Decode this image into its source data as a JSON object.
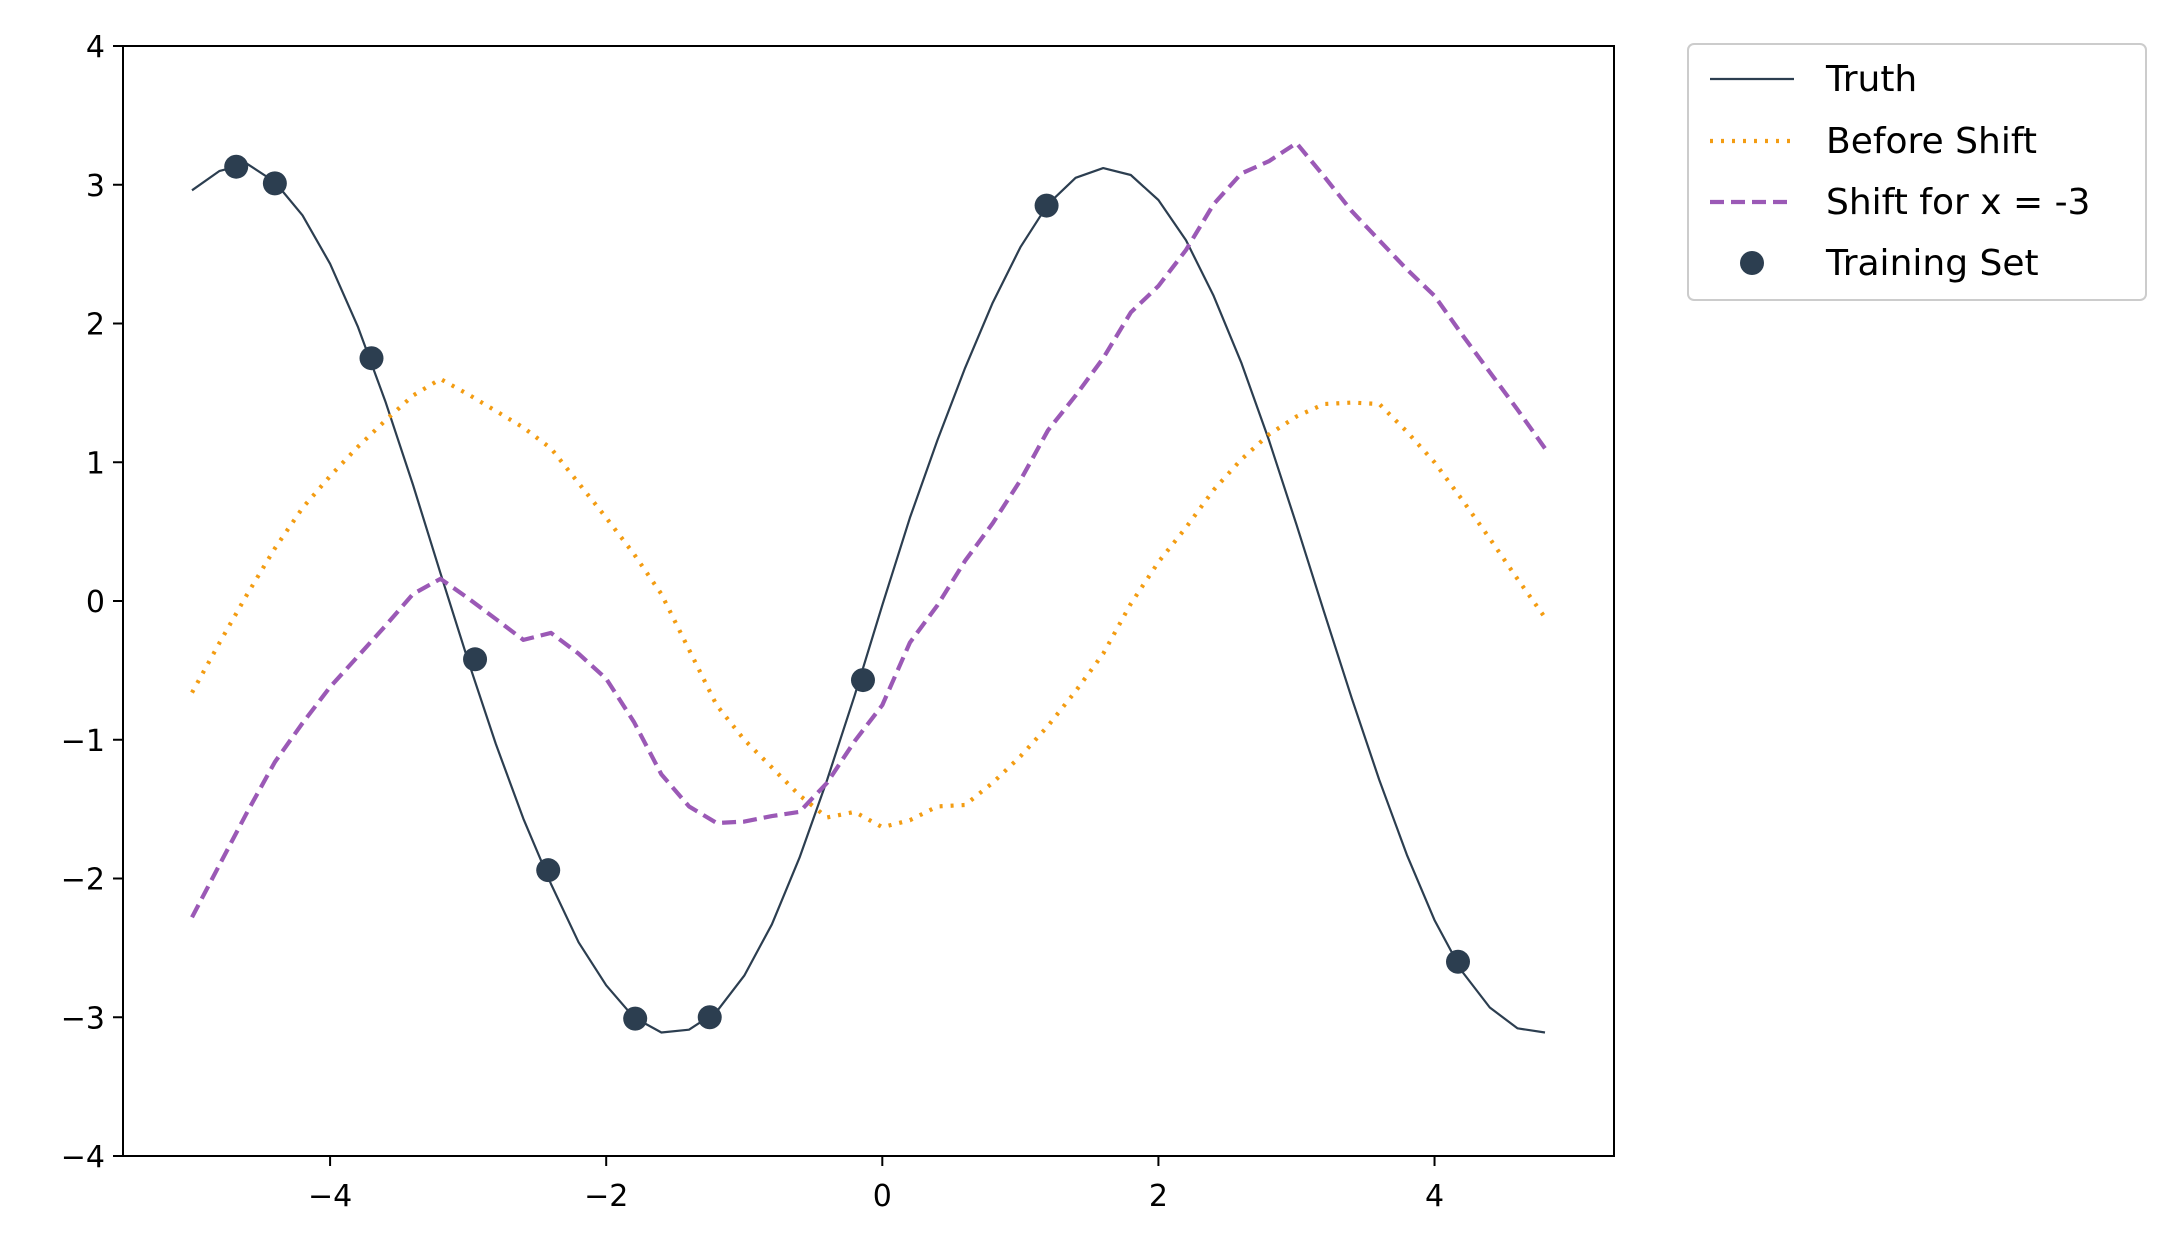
{
  "chart_data": {
    "type": "line",
    "title": "",
    "xlabel": "",
    "ylabel": "",
    "xlim": [
      -5.5,
      5.3
    ],
    "ylim": [
      -4,
      4
    ],
    "xticks": [
      -4,
      -2,
      0,
      2,
      4
    ],
    "xtick_labels": [
      "−4",
      "−2",
      "0",
      "2",
      "4"
    ],
    "yticks": [
      -4,
      -3,
      -2,
      -1,
      0,
      1,
      2,
      3,
      4
    ],
    "ytick_labels": [
      "−4",
      "−3",
      "−2",
      "−1",
      "0",
      "1",
      "2",
      "3",
      "4"
    ],
    "grid": false,
    "legend_position": "outside-top-right",
    "series": [
      {
        "name": "Truth",
        "style": "solid",
        "color": "#2c3e50",
        "points": [
          [
            -5.0,
            2.96
          ],
          [
            -4.8,
            3.1
          ],
          [
            -4.6,
            3.15
          ],
          [
            -4.4,
            3.02
          ],
          [
            -4.2,
            2.78
          ],
          [
            -4.0,
            2.43
          ],
          [
            -3.8,
            1.98
          ],
          [
            -3.6,
            1.44
          ],
          [
            -3.4,
            0.84
          ],
          [
            -3.2,
            0.2
          ],
          [
            -3.0,
            -0.43
          ],
          [
            -2.8,
            -1.03
          ],
          [
            -2.6,
            -1.57
          ],
          [
            -2.4,
            -2.04
          ],
          [
            -2.2,
            -2.46
          ],
          [
            -2.0,
            -2.77
          ],
          [
            -1.8,
            -3.0
          ],
          [
            -1.6,
            -3.11
          ],
          [
            -1.4,
            -3.09
          ],
          [
            -1.2,
            -2.96
          ],
          [
            -1.0,
            -2.7
          ],
          [
            -0.8,
            -2.33
          ],
          [
            -0.6,
            -1.85
          ],
          [
            -0.4,
            -1.29
          ],
          [
            -0.2,
            -0.68
          ],
          [
            0.0,
            -0.03
          ],
          [
            0.2,
            0.6
          ],
          [
            0.4,
            1.16
          ],
          [
            0.6,
            1.68
          ],
          [
            0.8,
            2.15
          ],
          [
            1.0,
            2.55
          ],
          [
            1.2,
            2.86
          ],
          [
            1.4,
            3.05
          ],
          [
            1.6,
            3.12
          ],
          [
            1.8,
            3.07
          ],
          [
            2.0,
            2.89
          ],
          [
            2.2,
            2.6
          ],
          [
            2.4,
            2.2
          ],
          [
            2.6,
            1.72
          ],
          [
            2.8,
            1.16
          ],
          [
            3.0,
            0.55
          ],
          [
            3.2,
            -0.08
          ],
          [
            3.4,
            -0.7
          ],
          [
            3.6,
            -1.29
          ],
          [
            3.8,
            -1.83
          ],
          [
            4.0,
            -2.3
          ],
          [
            4.2,
            -2.67
          ],
          [
            4.4,
            -2.93
          ],
          [
            4.6,
            -3.08
          ],
          [
            4.8,
            -3.11
          ]
        ]
      },
      {
        "name": "Before Shift",
        "style": "dotted",
        "color": "#f39c12",
        "points": [
          [
            -5.0,
            -0.66
          ],
          [
            -4.8,
            -0.3
          ],
          [
            -4.6,
            0.05
          ],
          [
            -4.4,
            0.38
          ],
          [
            -4.2,
            0.67
          ],
          [
            -4.0,
            0.9
          ],
          [
            -3.8,
            1.11
          ],
          [
            -3.6,
            1.3
          ],
          [
            -3.4,
            1.48
          ],
          [
            -3.2,
            1.6
          ],
          [
            -3.0,
            1.49
          ],
          [
            -2.8,
            1.37
          ],
          [
            -2.6,
            1.25
          ],
          [
            -2.4,
            1.1
          ],
          [
            -2.2,
            0.85
          ],
          [
            -2.0,
            0.6
          ],
          [
            -1.8,
            0.34
          ],
          [
            -1.6,
            0.05
          ],
          [
            -1.4,
            -0.35
          ],
          [
            -1.2,
            -0.75
          ],
          [
            -1.0,
            -1.0
          ],
          [
            -0.8,
            -1.2
          ],
          [
            -0.6,
            -1.4
          ],
          [
            -0.4,
            -1.56
          ],
          [
            -0.2,
            -1.52
          ],
          [
            0.0,
            -1.63
          ],
          [
            0.2,
            -1.58
          ],
          [
            0.4,
            -1.48
          ],
          [
            0.6,
            -1.47
          ],
          [
            0.8,
            -1.31
          ],
          [
            1.0,
            -1.12
          ],
          [
            1.2,
            -0.9
          ],
          [
            1.4,
            -0.65
          ],
          [
            1.6,
            -0.38
          ],
          [
            1.8,
            -0.02
          ],
          [
            2.0,
            0.28
          ],
          [
            2.2,
            0.53
          ],
          [
            2.4,
            0.8
          ],
          [
            2.6,
            1.02
          ],
          [
            2.8,
            1.2
          ],
          [
            3.0,
            1.33
          ],
          [
            3.2,
            1.42
          ],
          [
            3.4,
            1.43
          ],
          [
            3.6,
            1.42
          ],
          [
            3.8,
            1.22
          ],
          [
            4.0,
            1.0
          ],
          [
            4.2,
            0.73
          ],
          [
            4.4,
            0.45
          ],
          [
            4.6,
            0.16
          ],
          [
            4.8,
            -0.12
          ]
        ]
      },
      {
        "name": "Shift for x = -3",
        "style": "dashed",
        "color": "#9b59b6",
        "points": [
          [
            -5.0,
            -2.28
          ],
          [
            -4.8,
            -1.9
          ],
          [
            -4.6,
            -1.52
          ],
          [
            -4.4,
            -1.16
          ],
          [
            -4.2,
            -0.88
          ],
          [
            -4.0,
            -0.62
          ],
          [
            -3.8,
            -0.4
          ],
          [
            -3.6,
            -0.18
          ],
          [
            -3.4,
            0.05
          ],
          [
            -3.2,
            0.16
          ],
          [
            -3.0,
            0.02
          ],
          [
            -2.8,
            -0.13
          ],
          [
            -2.6,
            -0.28
          ],
          [
            -2.4,
            -0.23
          ],
          [
            -2.2,
            -0.38
          ],
          [
            -2.0,
            -0.56
          ],
          [
            -1.8,
            -0.87
          ],
          [
            -1.6,
            -1.25
          ],
          [
            -1.4,
            -1.48
          ],
          [
            -1.2,
            -1.6
          ],
          [
            -1.0,
            -1.59
          ],
          [
            -0.8,
            -1.55
          ],
          [
            -0.6,
            -1.52
          ],
          [
            -0.4,
            -1.31
          ],
          [
            -0.2,
            -1.01
          ],
          [
            0.0,
            -0.75
          ],
          [
            0.2,
            -0.3
          ],
          [
            0.4,
            -0.03
          ],
          [
            0.6,
            0.29
          ],
          [
            0.8,
            0.56
          ],
          [
            1.0,
            0.87
          ],
          [
            1.2,
            1.23
          ],
          [
            1.4,
            1.48
          ],
          [
            1.6,
            1.75
          ],
          [
            1.8,
            2.08
          ],
          [
            2.0,
            2.27
          ],
          [
            2.2,
            2.53
          ],
          [
            2.4,
            2.86
          ],
          [
            2.6,
            3.08
          ],
          [
            2.8,
            3.17
          ],
          [
            3.0,
            3.3
          ],
          [
            3.2,
            3.06
          ],
          [
            3.4,
            2.81
          ],
          [
            3.6,
            2.6
          ],
          [
            3.8,
            2.39
          ],
          [
            4.0,
            2.2
          ],
          [
            4.2,
            1.92
          ],
          [
            4.4,
            1.65
          ],
          [
            4.6,
            1.38
          ],
          [
            4.8,
            1.1
          ]
        ]
      },
      {
        "name": "Training Set",
        "style": "markers",
        "color": "#2c3e50",
        "points": [
          [
            -4.68,
            3.13
          ],
          [
            -4.4,
            3.01
          ],
          [
            -3.7,
            1.75
          ],
          [
            -2.95,
            -0.42
          ],
          [
            -2.42,
            -1.94
          ],
          [
            -1.79,
            -3.01
          ],
          [
            -1.25,
            -3.0
          ],
          [
            -0.14,
            -0.57
          ],
          [
            1.19,
            2.85
          ],
          [
            4.17,
            -2.6
          ]
        ]
      }
    ]
  }
}
